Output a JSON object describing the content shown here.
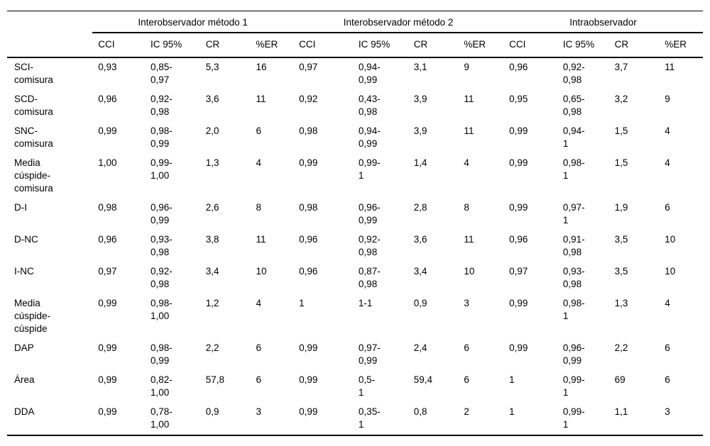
{
  "table": {
    "groups": [
      {
        "label": "Interobservador método 1"
      },
      {
        "label": "Interobservador método 2"
      },
      {
        "label": "Intraobservador"
      }
    ],
    "subheaders": [
      "CCI",
      "IC 95%",
      "CR",
      "%ER"
    ],
    "rows": [
      {
        "label": "SCI-\ncomisura",
        "cells": [
          "0,93",
          "0,85-\n0,97",
          "5,3",
          "16",
          "0,97",
          "0,94-\n0,99",
          "3,1",
          "9",
          "0,96",
          "0,92-\n0,98",
          "3,7",
          "11"
        ]
      },
      {
        "label": "SCD-\ncomisura",
        "cells": [
          "0,96",
          "0,92-\n0,98",
          "3,6",
          "11",
          "0,92",
          "0,43-\n0,98",
          "3,9",
          "11",
          "0,95",
          "0,65-\n0,98",
          "3,2",
          "9"
        ]
      },
      {
        "label": "SNC-\ncomisura",
        "cells": [
          "0,99",
          "0,98-\n0,99",
          "2,0",
          "6",
          "0,98",
          "0,94-\n0,99",
          "3,9",
          "11",
          "0,99",
          "0,94-\n1",
          "1,5",
          "4"
        ]
      },
      {
        "label": "Media\ncúspide-\ncomisura",
        "cells": [
          "1,00",
          "0,99-\n1,00",
          "1,3",
          "4",
          "0,99",
          "0,99-\n1",
          "1,4",
          "4",
          "0,99",
          "0,98-\n1",
          "1,5",
          "4"
        ]
      },
      {
        "label": "D-I",
        "cells": [
          "0,98",
          "0,96-\n0,99",
          "2,6",
          "8",
          "0,98",
          "0,96-\n0,99",
          "2,8",
          "8",
          "0,99",
          "0,97-\n1",
          "1,9",
          "6"
        ]
      },
      {
        "label": "D-NC",
        "cells": [
          "0,96",
          "0,93-\n0,98",
          "3,8",
          "11",
          "0,96",
          "0,92-\n0,98",
          "3,6",
          "11",
          "0,96",
          "0,91-\n0,98",
          "3,5",
          "10"
        ]
      },
      {
        "label": "I-NC",
        "cells": [
          "0,97",
          "0,92-\n0,98",
          "3,4",
          "10",
          "0,96",
          "0,87-\n0,98",
          "3,4",
          "10",
          "0,97",
          "0,93-\n0,98",
          "3,5",
          "10"
        ]
      },
      {
        "label": "Media\ncúspide-\ncúspide",
        "cells": [
          "0,99",
          "0,98-\n1,00",
          "1,2",
          "4",
          "1",
          "1-1",
          "0,9",
          "3",
          "0,99",
          "0,98-\n1",
          "1,3",
          "4"
        ]
      },
      {
        "label": "DAP",
        "cells": [
          "0,99",
          "0,98-\n0,99",
          "2,2",
          "6",
          "0,99",
          "0,97-\n0,99",
          "2,4",
          "6",
          "0,99",
          "0,96-\n0,99",
          "2,2",
          "6"
        ]
      },
      {
        "label": "Área",
        "cells": [
          "0,99",
          "0,82-\n1,00",
          "57,8",
          "6",
          "0,99",
          "0,5-\n1",
          "59,4",
          "6",
          "1",
          "0,99-\n1",
          "69",
          "6"
        ]
      },
      {
        "label": "DDA",
        "cells": [
          "0,99",
          "0,78-\n1,00",
          "0,9",
          "3",
          "0,99",
          "0,35-\n1",
          "0,8",
          "2",
          "1",
          "0,99-\n1",
          "1,1",
          "3"
        ]
      }
    ]
  }
}
